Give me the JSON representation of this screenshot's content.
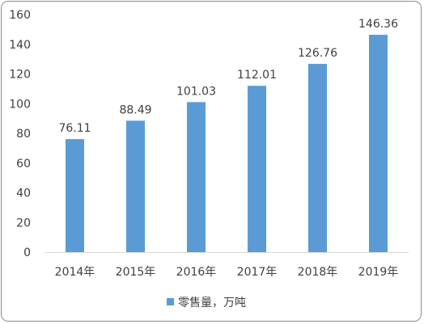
{
  "chart_data": {
    "type": "bar",
    "categories": [
      "2014年",
      "2015年",
      "2016年",
      "2017年",
      "2018年",
      "2019年"
    ],
    "series": [
      {
        "name": "零售量，万吨",
        "values": [
          76.11,
          88.49,
          101.03,
          112.01,
          126.76,
          146.36
        ],
        "color": "#5b9bd5"
      }
    ],
    "data_labels": [
      "76.11",
      "88.49",
      "101.03",
      "112.01",
      "126.76",
      "146.36"
    ],
    "y_ticks": [
      "0",
      "20",
      "40",
      "60",
      "80",
      "100",
      "120",
      "140",
      "160"
    ],
    "ylim": [
      0,
      160
    ],
    "grid": false,
    "legend_position": "bottom",
    "title": "",
    "xlabel": "",
    "ylabel": ""
  }
}
